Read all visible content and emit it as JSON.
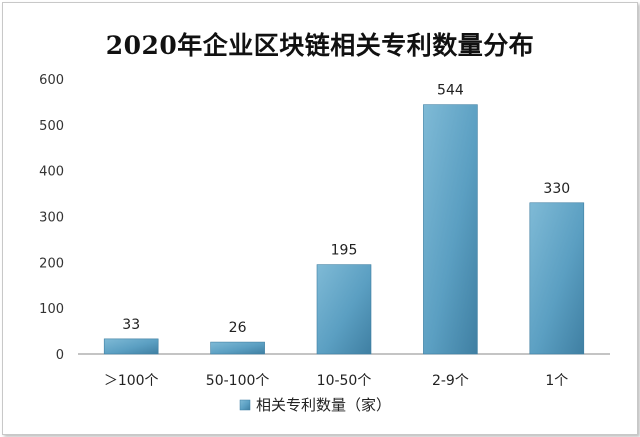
{
  "chart_data": {
    "type": "bar",
    "title": "2020年企业区块链相关专利数量分布",
    "categories": [
      "＞100个",
      "50-100个",
      "10-50个",
      "2-9个",
      "1个"
    ],
    "series": [
      {
        "name": "相关专利数量（家）",
        "values": [
          33,
          26,
          195,
          544,
          330
        ]
      }
    ],
    "y_ticks": [
      "0",
      "100",
      "200",
      "300",
      "400",
      "500",
      "600"
    ],
    "ylim": [
      0,
      600
    ],
    "xlabel": "",
    "ylabel": "",
    "grid": false,
    "legend": "bottom",
    "bar_color": "#5b9fc2",
    "bar_color_dark": "#3f7fa2"
  }
}
